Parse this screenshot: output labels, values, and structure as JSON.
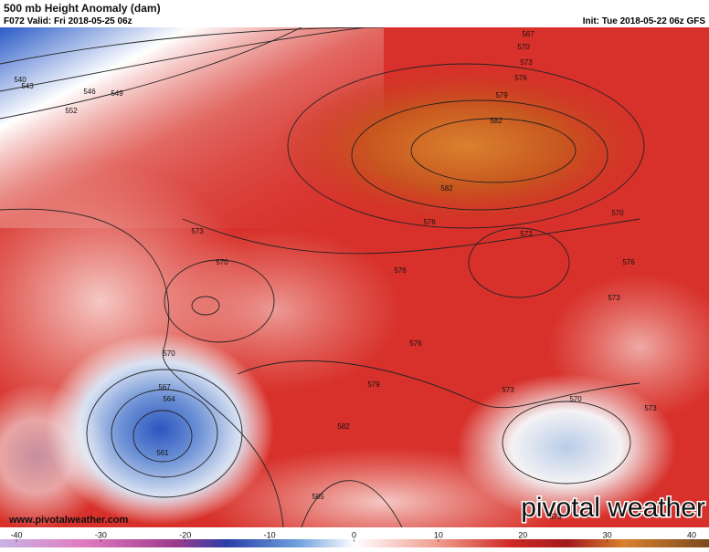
{
  "header": {
    "title": "500 mb Height Anomaly (dam)",
    "valid": "F072 Valid: Fri 2018-05-25 06z",
    "init": "Init: Tue 2018-05-22 06z GFS"
  },
  "watermark": {
    "url": "www.pivotalweather.com",
    "brand": "pivotal weather"
  },
  "colorbar": {
    "ticks": [
      -40,
      -30,
      -20,
      -10,
      0,
      10,
      20,
      30,
      40
    ]
  },
  "contour_labels": [
    540,
    543,
    546,
    549,
    552,
    567,
    570,
    573,
    576,
    579,
    582,
    582,
    576,
    573,
    570,
    576,
    573,
    576,
    570,
    573,
    576,
    579,
    573,
    570,
    573,
    570,
    567,
    564,
    561,
    582,
    585,
    573
  ]
}
